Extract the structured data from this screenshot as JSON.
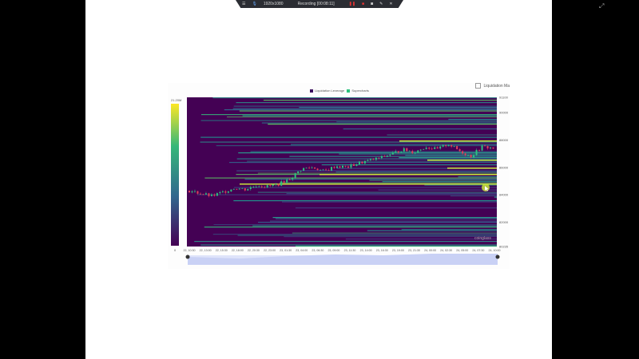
{
  "recorder": {
    "resolution": "1920x1080",
    "status": "Recording [00:08:11]"
  },
  "toggle": {
    "label": "Liquidation Ma",
    "checked": false
  },
  "legend": [
    {
      "name": "Liquidation Leverage",
      "color": "#3b0f5e"
    },
    {
      "name": "Supercharts",
      "color": "#2ec27e"
    }
  ],
  "watermark": "coinglass",
  "chart_data": {
    "type": "heatmap",
    "title": "",
    "xlabel": "",
    "ylabel": "",
    "x_ticks": [
      "22, 10:30",
      "22, 13:00",
      "22, 15:30",
      "22, 18:00",
      "22, 20:30",
      "22, 23:00",
      "23, 01:30",
      "23, 04:00",
      "23, 06:30",
      "23, 09:00",
      "23, 11:30",
      "23, 14:00",
      "23, 16:30",
      "23, 19:00",
      "23, 21:30",
      "24, 00:00",
      "24, 02:30",
      "24, 05:00",
      "24, 07:30",
      "24, 10:00"
    ],
    "y_ticks": [
      91100,
      90000,
      88000,
      86000,
      84000,
      82000,
      80235
    ],
    "ylim": [
      80235,
      91100
    ],
    "colorbar": {
      "min_label": "0",
      "max_label": "21.20M",
      "colors": [
        "#440154",
        "#31688e",
        "#35b779",
        "#fde725"
      ]
    },
    "price_series_approx": [
      84300,
      84100,
      83900,
      84200,
      84500,
      84400,
      84700,
      84600,
      84800,
      85200,
      85900,
      86000,
      85700,
      86100,
      86000,
      86300,
      86500,
      86700,
      87000,
      87300,
      87100,
      87500,
      87300,
      87700,
      87200,
      86800,
      87500,
      87400
    ]
  }
}
